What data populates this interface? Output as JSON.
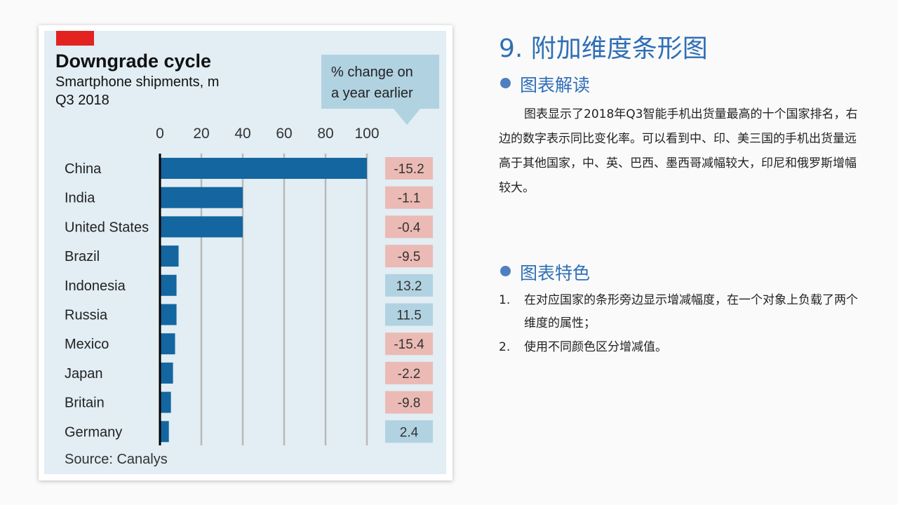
{
  "slide": {
    "title": "9. 附加维度条形图",
    "section1_heading": "图表解读",
    "section1_text": "图表显示了2018年Q3智能手机出货量最高的十个国家排名，右边的数字表示同比变化率。可以看到中、印、美三国的手机出货量远高于其他国家，中、英、巴西、墨西哥减幅较大，印尼和俄罗斯增幅较大。",
    "section2_heading": "图表特色",
    "features": [
      {
        "num": "1.",
        "text": "在对应国家的条形旁边显示增减幅度，在一个对象上负载了两个维度的属性；"
      },
      {
        "num": "2.",
        "text": "使用不同颜色区分增减值。"
      }
    ]
  },
  "chart_data": {
    "type": "bar",
    "orientation": "horizontal",
    "title": "Downgrade cycle",
    "subtitle": "Smartphone shipments, m",
    "period": "Q3 2018",
    "change_label": "% change on a year earlier",
    "change_label_lines": [
      "% change on",
      "a year earlier"
    ],
    "source": "Source: Canalys",
    "categories": [
      "China",
      "India",
      "United States",
      "Brazil",
      "Indonesia",
      "Russia",
      "Mexico",
      "Japan",
      "Britain",
      "Germany"
    ],
    "values": [
      100,
      40,
      40,
      9,
      8,
      8,
      7.3,
      6.3,
      5.3,
      4.3
    ],
    "change": [
      "-15.2",
      "-1.1",
      "-0.4",
      "-9.5",
      "13.2",
      "11.5",
      "-15.4",
      "-2.2",
      "-9.8",
      "2.4"
    ],
    "xlim": [
      0,
      100
    ],
    "xticks": [
      "0",
      "20",
      "40",
      "60",
      "80",
      "100"
    ],
    "grid": true,
    "colors": {
      "bar": "#13669f",
      "decrease": "#ebbab4",
      "increase": "#b1d2e1",
      "accent": "#e3231f"
    }
  }
}
